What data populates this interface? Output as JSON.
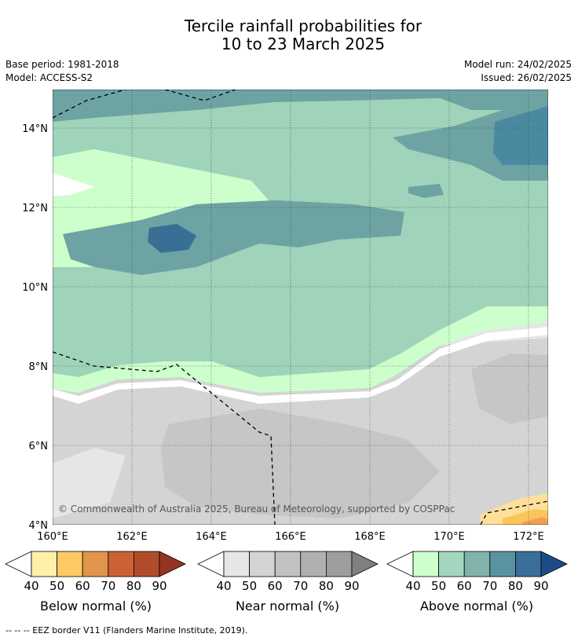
{
  "header": {
    "title_line1": "Tercile rainfall probabilities for",
    "title_line2": "10 to 23 March 2025",
    "base_period": "Base period: 1981-2018",
    "model": "Model: ACCESS-S2",
    "model_run": "Model run: 24/02/2025",
    "issued": "Issued: 26/02/2025"
  },
  "map": {
    "x_ticks": [
      "160°E",
      "162°E",
      "164°E",
      "166°E",
      "168°E",
      "170°E",
      "172°E"
    ],
    "y_ticks": [
      "14°N",
      "12°N",
      "10°N",
      "8°N",
      "6°N",
      "4°N"
    ],
    "copyright": "© Commonwealth of Australia 2025, Bureau of Meteorology, supported by COSPPac",
    "colors": {
      "above_40": "#ccffcc",
      "above_50": "#9fd3ba",
      "above_60": "#6ea3a3",
      "above_70": "#4a8aa0",
      "above_80": "#3a6f95",
      "near_40": "#e6e6e6",
      "near_50": "#d4d4d4",
      "near_60": "#c6c6c6",
      "below_40": "#ffe09a",
      "below_50": "#fbc55a",
      "below_60": "#f0a050"
    }
  },
  "colorbars": [
    {
      "label": "Below normal (%)",
      "ticks": [
        "40",
        "50",
        "60",
        "70",
        "80",
        "90"
      ],
      "colors": [
        "#fff0a8",
        "#fdc963",
        "#e0954c",
        "#cc6233",
        "#b14c2b",
        "#963422"
      ]
    },
    {
      "label": "Near normal (%)",
      "ticks": [
        "40",
        "50",
        "60",
        "70",
        "80",
        "90"
      ],
      "colors": [
        "#e6e6e6",
        "#d4d4d4",
        "#c2c2c2",
        "#b0b0b0",
        "#9e9e9e",
        "#808080"
      ]
    },
    {
      "label": "Above normal (%)",
      "ticks": [
        "40",
        "50",
        "60",
        "70",
        "80",
        "90"
      ],
      "colors": [
        "#ccffcc",
        "#a3d6be",
        "#80b4aa",
        "#5a93a0",
        "#3b6e9a",
        "#1c4c86"
      ]
    }
  ],
  "footnote": "--  --  -- EEZ border V11 (Flanders Marine Institute, 2019)."
}
